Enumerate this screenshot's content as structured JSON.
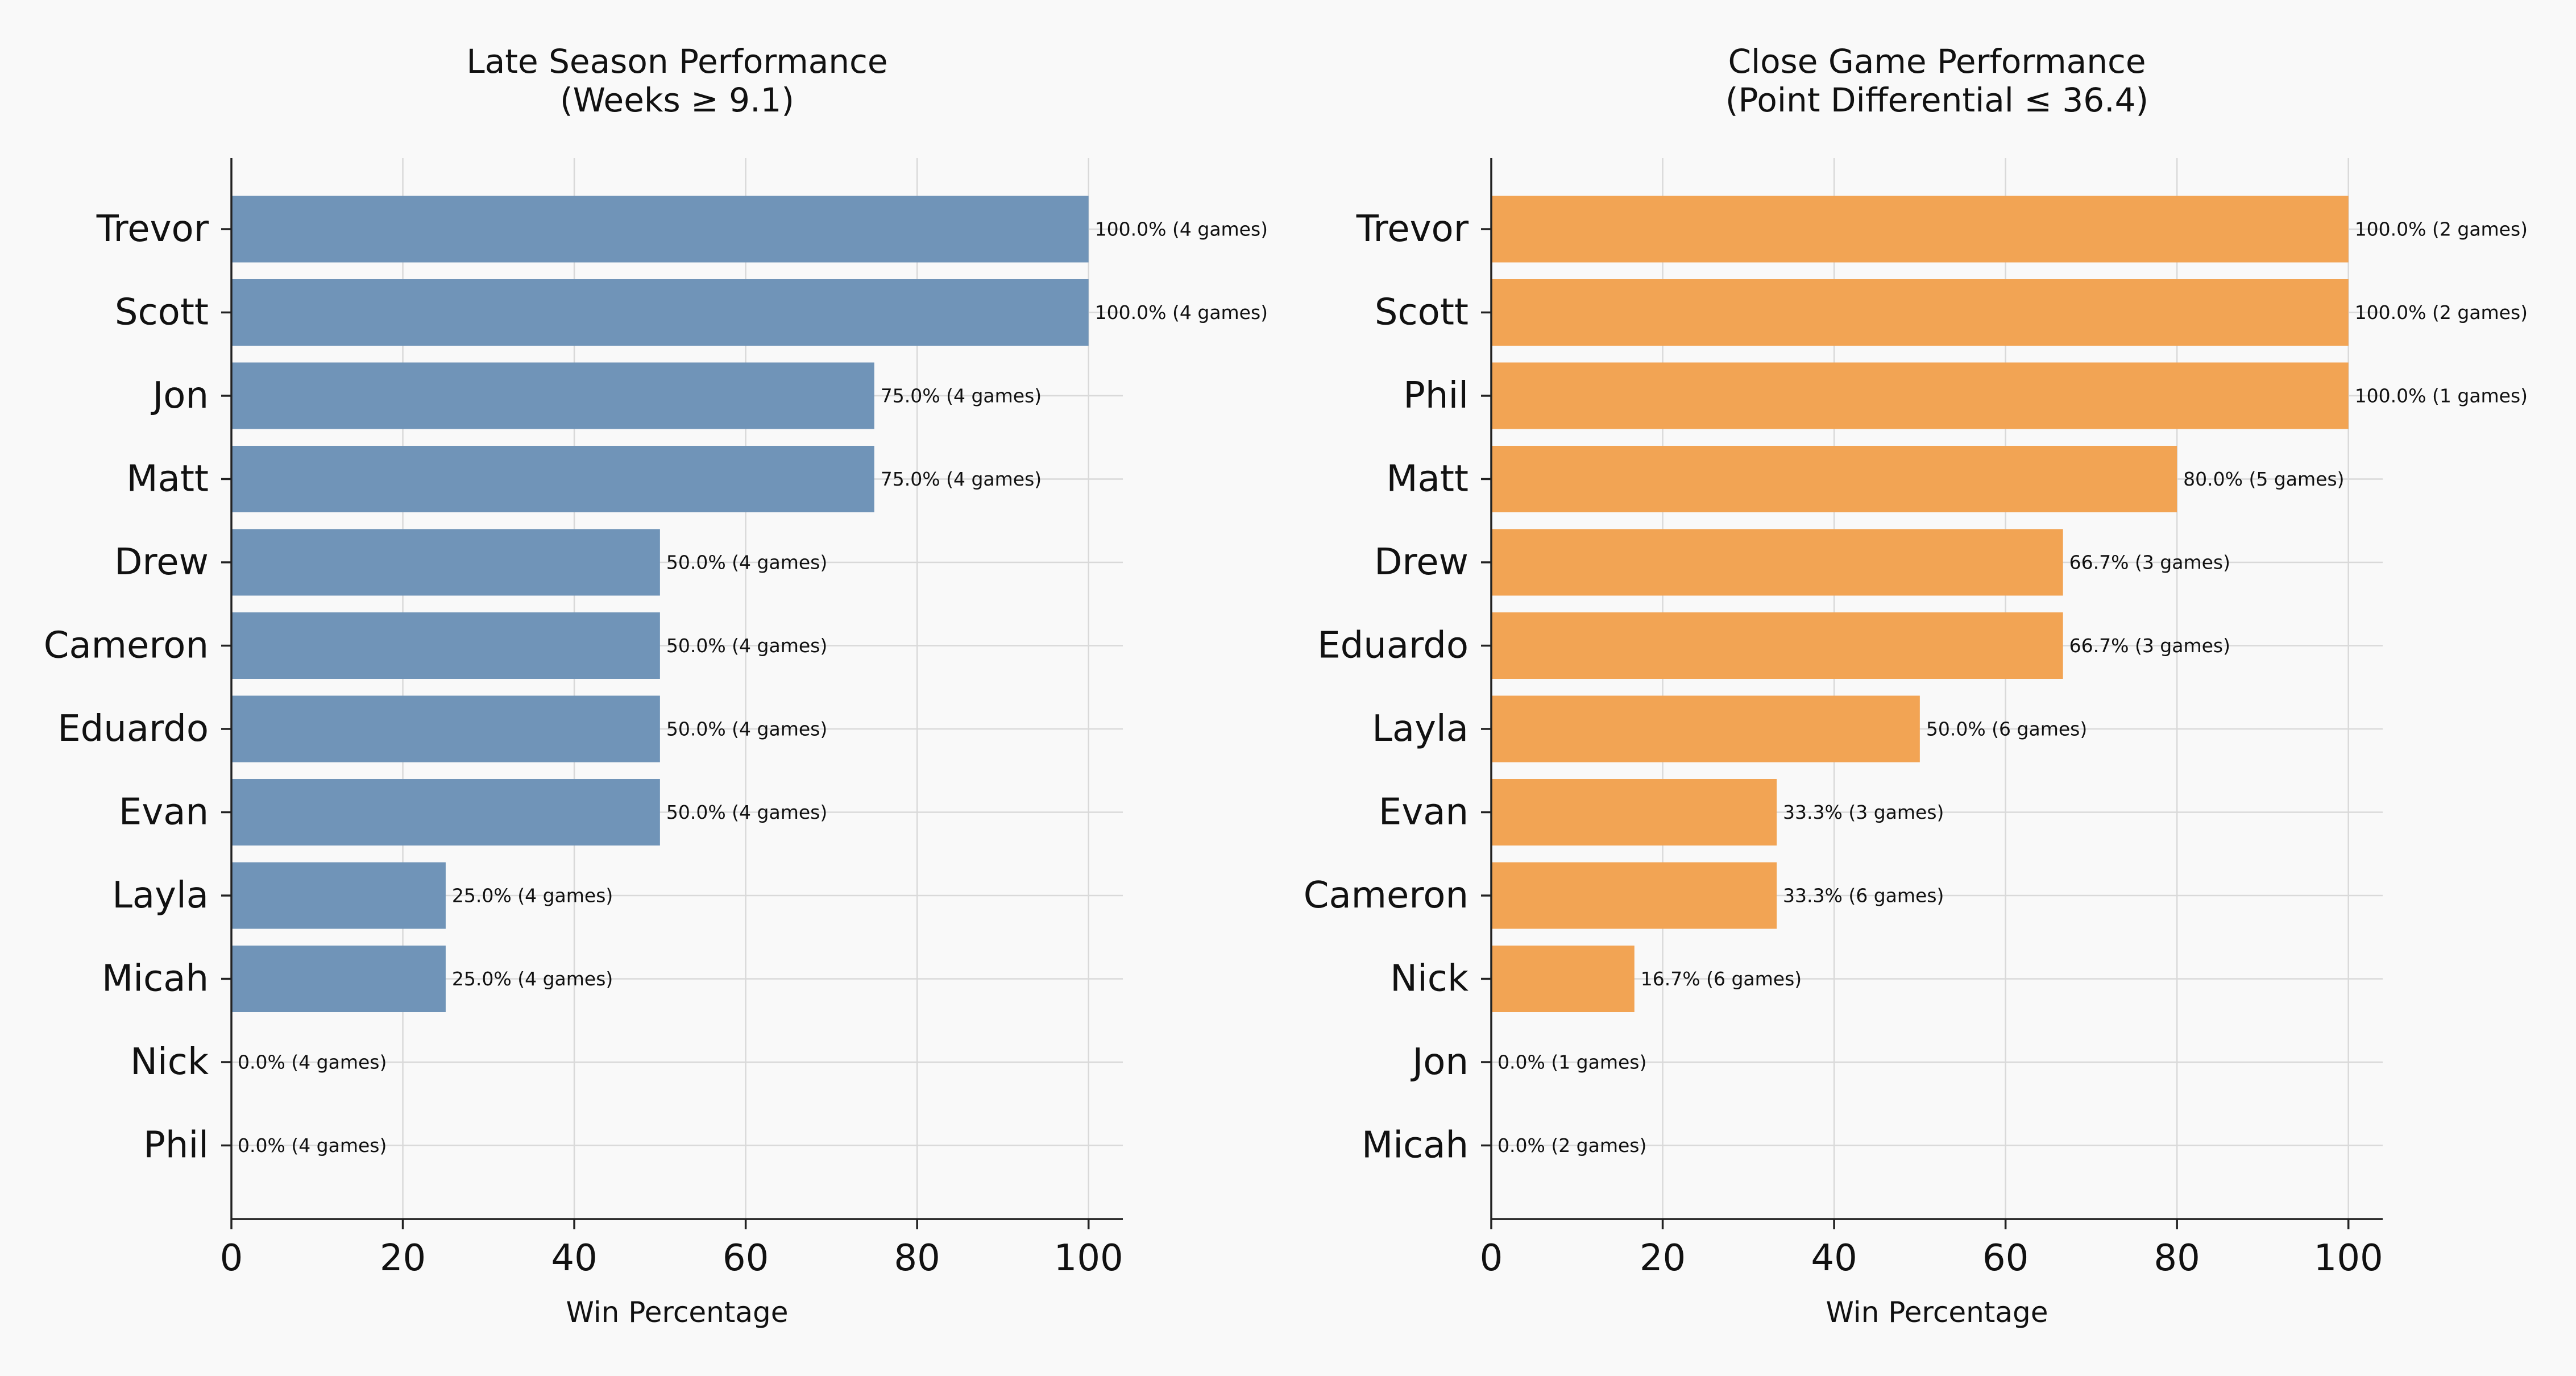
{
  "chart_data": [
    {
      "type": "bar",
      "orientation": "horizontal",
      "title_lines": [
        "Late Season Performance",
        "(Weeks ≥ 9.1)"
      ],
      "xlabel": "Win Percentage",
      "ylabel": "",
      "xlim": [
        0,
        104
      ],
      "xticks": [
        0,
        20,
        40,
        60,
        80,
        100
      ],
      "grid": true,
      "color": "#7094b8",
      "categories": [
        "Trevor",
        "Scott",
        "Jon",
        "Matt",
        "Drew",
        "Cameron",
        "Eduardo",
        "Evan",
        "Layla",
        "Micah",
        "Nick",
        "Phil"
      ],
      "values": [
        100,
        100,
        75,
        75,
        50,
        50,
        50,
        50,
        25,
        25,
        0,
        0
      ],
      "games": [
        4,
        4,
        4,
        4,
        4,
        4,
        4,
        4,
        4,
        4,
        4,
        4
      ],
      "labels": [
        "100.0% (4 games)",
        "100.0% (4 games)",
        "75.0% (4 games)",
        "75.0% (4 games)",
        "50.0% (4 games)",
        "50.0% (4 games)",
        "50.0% (4 games)",
        "50.0% (4 games)",
        "25.0% (4 games)",
        "25.0% (4 games)",
        "0.0% (4 games)",
        "0.0% (4 games)"
      ]
    },
    {
      "type": "bar",
      "orientation": "horizontal",
      "title_lines": [
        "Close Game Performance",
        "(Point Differential ≤ 36.4)"
      ],
      "xlabel": "Win Percentage",
      "ylabel": "",
      "xlim": [
        0,
        104
      ],
      "xticks": [
        0,
        20,
        40,
        60,
        80,
        100
      ],
      "grid": true,
      "color": "#f2a454",
      "categories": [
        "Trevor",
        "Scott",
        "Phil",
        "Matt",
        "Drew",
        "Eduardo",
        "Layla",
        "Evan",
        "Cameron",
        "Nick",
        "Jon",
        "Micah"
      ],
      "values": [
        100,
        100,
        100,
        80,
        66.7,
        66.7,
        50,
        33.3,
        33.3,
        16.7,
        0,
        0
      ],
      "games": [
        2,
        2,
        1,
        5,
        3,
        3,
        6,
        3,
        6,
        6,
        1,
        2
      ],
      "labels": [
        "100.0% (2 games)",
        "100.0% (2 games)",
        "100.0% (1 games)",
        "80.0% (5 games)",
        "66.7% (3 games)",
        "66.7% (3 games)",
        "50.0% (6 games)",
        "33.3% (3 games)",
        "33.3% (6 games)",
        "16.7% (6 games)",
        "0.0% (1 games)",
        "0.0% (2 games)"
      ]
    }
  ]
}
